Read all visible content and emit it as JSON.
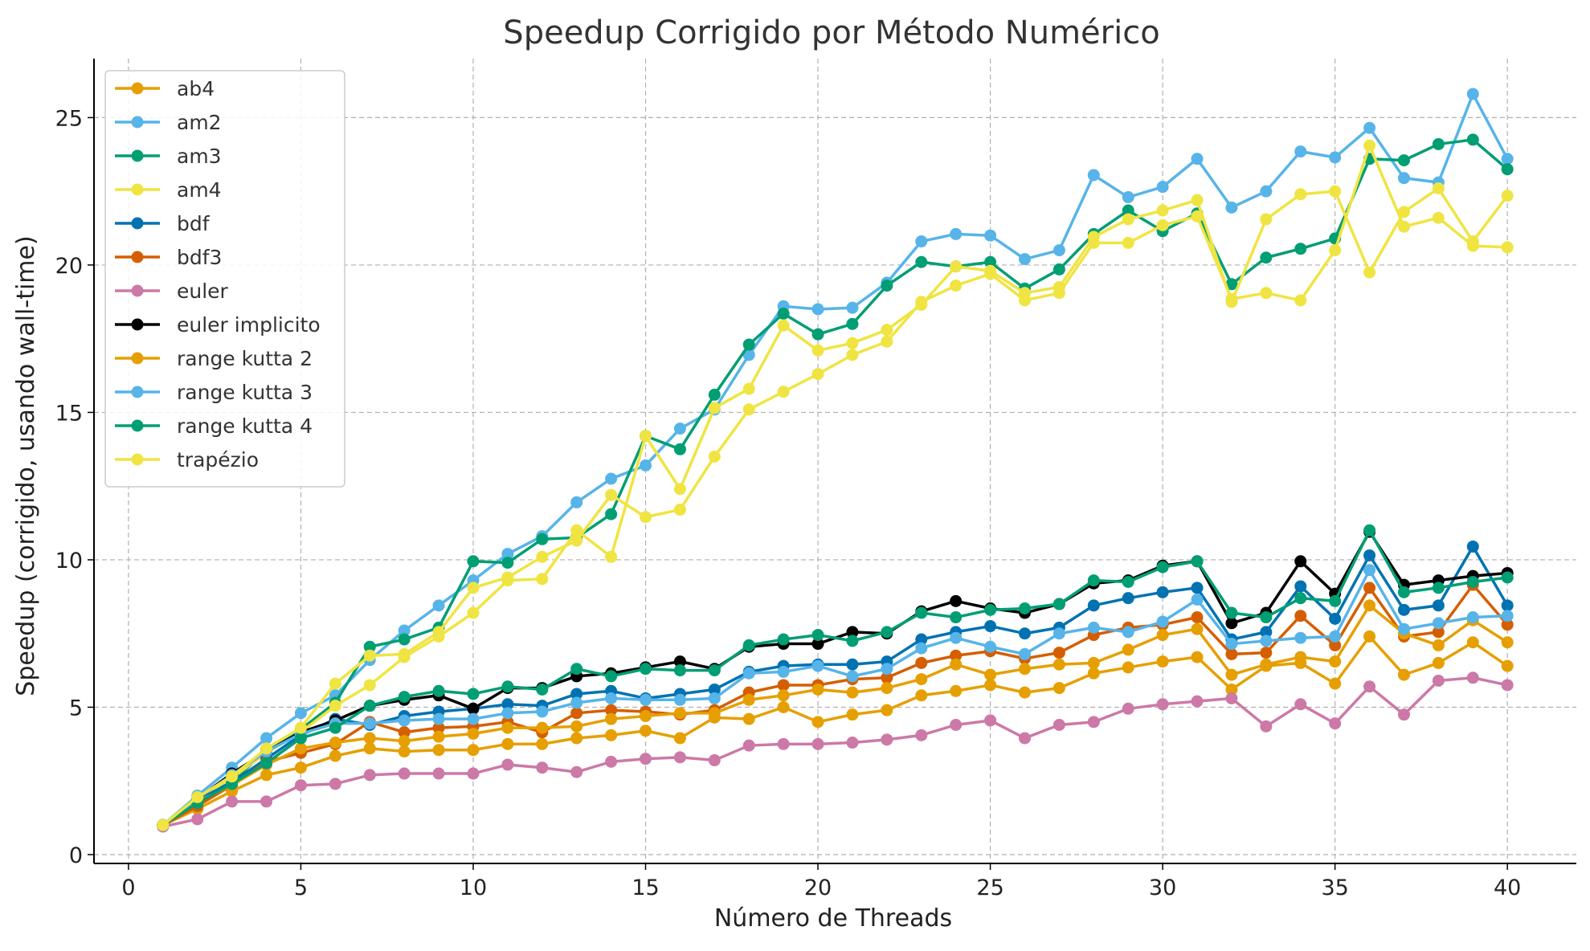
{
  "chart_data": {
    "type": "line",
    "title": "Speedup Corrigido por Método Numérico",
    "xlabel": "Número de Threads",
    "ylabel": "Speedup (corrigido, usando wall-time)",
    "xlim": [
      -1,
      42
    ],
    "ylim": [
      -0.3,
      27
    ],
    "xticks": [
      0,
      5,
      10,
      15,
      20,
      25,
      30,
      35,
      40
    ],
    "yticks": [
      0,
      5,
      10,
      15,
      20,
      25
    ],
    "grid": true,
    "legend_position": "top-left",
    "x": [
      1,
      2,
      3,
      4,
      5,
      6,
      7,
      8,
      9,
      10,
      11,
      12,
      13,
      14,
      15,
      16,
      17,
      18,
      19,
      20,
      21,
      22,
      23,
      24,
      25,
      26,
      27,
      28,
      29,
      30,
      31,
      32,
      33,
      34,
      35,
      36,
      37,
      38,
      39,
      40
    ],
    "series": [
      {
        "name": "ab4",
        "color": "#E69F00",
        "values": [
          1.0,
          1.55,
          2.15,
          2.7,
          2.95,
          3.35,
          3.6,
          3.5,
          3.55,
          3.55,
          3.75,
          3.75,
          3.95,
          4.05,
          4.2,
          3.95,
          4.65,
          4.6,
          5.0,
          4.5,
          4.75,
          4.9,
          5.4,
          5.55,
          5.75,
          5.5,
          5.65,
          6.15,
          6.35,
          6.55,
          6.7,
          5.6,
          6.4,
          6.5,
          5.8,
          7.4,
          6.1,
          6.5,
          7.2,
          6.4
        ]
      },
      {
        "name": "am2",
        "color": "#56B4E9",
        "values": [
          1.0,
          2.0,
          2.95,
          3.95,
          4.8,
          5.4,
          6.6,
          7.6,
          8.45,
          9.3,
          10.2,
          10.8,
          11.95,
          12.75,
          13.2,
          14.45,
          15.1,
          16.95,
          18.6,
          18.5,
          18.55,
          19.4,
          20.8,
          21.05,
          21.0,
          20.2,
          20.5,
          23.05,
          22.3,
          22.65,
          23.6,
          21.95,
          22.5,
          23.85,
          23.65,
          24.65,
          22.95,
          22.8,
          25.8,
          23.6
        ]
      },
      {
        "name": "am3",
        "color": "#009E73",
        "values": [
          1.0,
          1.95,
          2.45,
          3.55,
          4.25,
          5.15,
          7.05,
          7.3,
          7.7,
          9.95,
          9.9,
          10.7,
          10.75,
          11.55,
          14.2,
          13.75,
          15.6,
          17.3,
          18.35,
          17.65,
          18.0,
          19.3,
          20.1,
          19.95,
          20.1,
          19.2,
          19.85,
          21.05,
          21.85,
          21.15,
          21.75,
          19.35,
          20.25,
          20.55,
          20.9,
          23.6,
          23.55,
          24.1,
          24.25,
          23.25
        ]
      },
      {
        "name": "am4",
        "color": "#F0E442",
        "values": [
          1.0,
          1.9,
          2.6,
          3.45,
          4.15,
          5.05,
          5.75,
          6.7,
          7.4,
          8.2,
          9.3,
          9.35,
          11.0,
          10.1,
          14.2,
          12.4,
          15.15,
          15.8,
          17.95,
          17.1,
          17.35,
          17.8,
          18.65,
          19.95,
          19.8,
          19.05,
          19.25,
          20.95,
          21.55,
          21.85,
          22.2,
          18.75,
          21.55,
          22.4,
          22.5,
          19.75,
          21.8,
          22.6,
          20.8,
          22.35
        ]
      },
      {
        "name": "bdf",
        "color": "#0072B2",
        "values": [
          1.0,
          1.85,
          2.45,
          3.25,
          4.05,
          4.6,
          4.4,
          4.7,
          4.85,
          4.95,
          5.1,
          5.05,
          5.45,
          5.55,
          5.3,
          5.45,
          5.6,
          6.2,
          6.4,
          6.45,
          6.45,
          6.55,
          7.3,
          7.55,
          7.75,
          7.5,
          7.7,
          8.45,
          8.7,
          8.9,
          9.05,
          7.3,
          7.55,
          9.1,
          8.0,
          10.15,
          8.3,
          8.45,
          10.45,
          8.45
        ]
      },
      {
        "name": "bdf3",
        "color": "#D55E00",
        "values": [
          1.0,
          1.65,
          2.35,
          3.15,
          3.45,
          3.75,
          4.5,
          4.15,
          4.3,
          4.35,
          4.5,
          4.15,
          4.8,
          4.9,
          4.85,
          4.75,
          4.9,
          5.5,
          5.75,
          5.75,
          5.95,
          6.0,
          6.5,
          6.75,
          6.9,
          6.65,
          6.85,
          7.45,
          7.7,
          7.8,
          8.05,
          6.8,
          6.85,
          8.1,
          7.1,
          9.05,
          7.4,
          7.55,
          9.15,
          7.8
        ]
      },
      {
        "name": "euler",
        "color": "#CC79A7",
        "values": [
          0.95,
          1.2,
          1.8,
          1.8,
          2.35,
          2.4,
          2.7,
          2.75,
          2.75,
          2.75,
          3.05,
          2.95,
          2.8,
          3.15,
          3.25,
          3.3,
          3.2,
          3.7,
          3.75,
          3.75,
          3.8,
          3.9,
          4.05,
          4.4,
          4.55,
          3.95,
          4.4,
          4.5,
          4.95,
          5.1,
          5.2,
          5.3,
          4.35,
          5.1,
          4.45,
          5.7,
          4.75,
          5.9,
          6.0,
          5.75
        ]
      },
      {
        "name": "euler implicito",
        "color": "#000000",
        "values": [
          1.0,
          1.9,
          2.75,
          3.5,
          4.15,
          4.55,
          5.05,
          5.25,
          5.4,
          4.95,
          5.65,
          5.65,
          6.05,
          6.15,
          6.35,
          6.55,
          6.3,
          7.05,
          7.15,
          7.15,
          7.55,
          7.5,
          8.25,
          8.6,
          8.35,
          8.2,
          8.5,
          9.2,
          9.3,
          9.8,
          9.95,
          7.85,
          8.2,
          9.95,
          8.85,
          10.95,
          9.15,
          9.3,
          9.45,
          9.55
        ]
      },
      {
        "name": "range kutta 2",
        "color": "#E69F00",
        "values": [
          1.0,
          1.8,
          2.35,
          3.05,
          3.6,
          3.8,
          3.95,
          3.85,
          4.0,
          4.1,
          4.3,
          4.3,
          4.35,
          4.6,
          4.7,
          4.8,
          4.8,
          5.25,
          5.4,
          5.6,
          5.5,
          5.65,
          5.95,
          6.45,
          6.1,
          6.3,
          6.45,
          6.5,
          6.95,
          7.45,
          7.65,
          6.1,
          6.45,
          6.7,
          6.55,
          8.45,
          7.5,
          7.1,
          7.95,
          7.2
        ]
      },
      {
        "name": "range kutta 3",
        "color": "#56B4E9",
        "values": [
          1.0,
          1.9,
          2.7,
          3.5,
          4.1,
          4.45,
          4.45,
          4.55,
          4.6,
          4.6,
          4.8,
          4.85,
          5.15,
          5.3,
          5.25,
          5.25,
          5.3,
          6.15,
          6.2,
          6.4,
          6.05,
          6.3,
          7.0,
          7.35,
          7.05,
          6.8,
          7.5,
          7.7,
          7.55,
          7.9,
          8.65,
          7.15,
          7.25,
          7.35,
          7.4,
          9.65,
          7.65,
          7.85,
          8.05,
          8.1
        ]
      },
      {
        "name": "range kutta 4",
        "color": "#009E73",
        "values": [
          1.0,
          1.75,
          2.4,
          3.1,
          3.95,
          4.3,
          5.05,
          5.35,
          5.55,
          5.45,
          5.7,
          5.6,
          6.3,
          6.05,
          6.3,
          6.25,
          6.25,
          7.1,
          7.3,
          7.45,
          7.25,
          7.55,
          8.2,
          8.05,
          8.3,
          8.35,
          8.5,
          9.3,
          9.25,
          9.75,
          9.95,
          8.2,
          8.05,
          8.7,
          8.6,
          11.0,
          8.9,
          9.05,
          9.25,
          9.4
        ]
      },
      {
        "name": "trapézio",
        "color": "#F0E442",
        "values": [
          1.0,
          1.95,
          2.65,
          3.6,
          4.3,
          5.8,
          6.75,
          6.8,
          7.55,
          9.05,
          9.4,
          10.1,
          10.65,
          12.2,
          11.45,
          11.7,
          13.5,
          15.1,
          15.7,
          16.3,
          16.95,
          17.4,
          18.75,
          19.3,
          19.7,
          18.8,
          19.05,
          20.75,
          20.75,
          21.35,
          21.65,
          18.85,
          19.05,
          18.8,
          20.5,
          24.05,
          21.3,
          21.6,
          20.65,
          20.6
        ]
      }
    ]
  }
}
